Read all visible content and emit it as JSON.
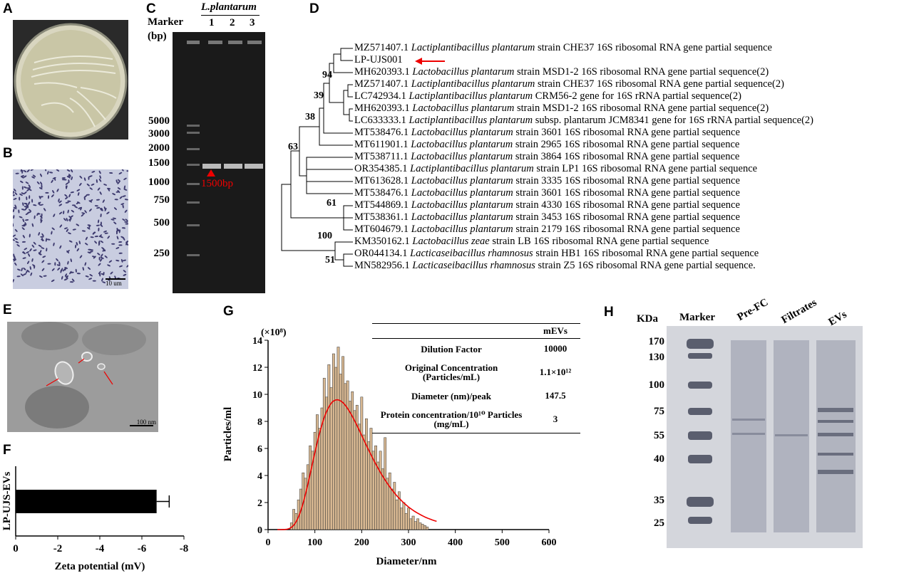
{
  "panels": {
    "a": {
      "label": "A"
    },
    "b": {
      "label": "B",
      "scale": "10 um"
    },
    "c": {
      "label": "C",
      "title": "L.plantarum",
      "marker": "Marker",
      "unit": "(bp)",
      "lanes": [
        "1",
        "2",
        "3"
      ],
      "ladder": [
        "5000",
        "3000",
        "2000",
        "1500",
        "1000",
        "750",
        "500",
        "250"
      ],
      "band_label": "1500bp"
    },
    "d": {
      "label": "D",
      "rows": [
        {
          "acc": "MZ571407.1",
          "sp": "Lactiplantibacillus plantarum",
          "rest": "strain CHE37 16S ribosomal RNA gene partial sequence"
        },
        {
          "acc": "LP-UJS001",
          "sp": "",
          "rest": ""
        },
        {
          "acc": "MH620393.1",
          "sp": "Lactobacillus plantarum",
          "rest": "strain MSD1-2 16S ribosomal RNA gene partial sequence(2)"
        },
        {
          "acc": "MZ571407.1",
          "sp": "Lactiplantibacillus plantarum",
          "rest": "strain CHE37 16S ribosomal RNA gene partial sequence(2)"
        },
        {
          "acc": "LC742934.1",
          "sp": "Lactiplantibacillus plantarum",
          "rest": "CRM56-2 gene for 16S rRNA partial sequence(2)"
        },
        {
          "acc": "MH620393.1",
          "sp": "Lactobacillus plantarum",
          "rest": "strain MSD1-2 16S ribosomal RNA gene partial sequence(2)"
        },
        {
          "acc": "LC633333.1",
          "sp": "Lactiplantibacillus plantarum",
          "rest": "subsp. plantarum JCM8341 gene for 16S rRNA partial sequence(2)"
        },
        {
          "acc": "MT538476.1",
          "sp": "Lactobacillus plantarum",
          "rest": "strain 3601 16S ribosomal RNA gene partial sequence"
        },
        {
          "acc": "MT611901.1",
          "sp": "Lactobacillus plantarum",
          "rest": "strain 2965 16S ribosomal RNA gene partial sequence"
        },
        {
          "acc": "MT538711.1",
          "sp": "Lactobacillus plantarum",
          "rest": "strain 3864 16S ribosomal RNA gene partial sequence"
        },
        {
          "acc": "OR354385.1",
          "sp": "Lactiplantibacillus plantarum",
          "rest": "strain LP1 16S ribosomal RNA gene partial sequence"
        },
        {
          "acc": "MT613628.1",
          "sp": "Lactobacillus plantarum",
          "rest": "strain 3335 16S ribosomal RNA gene partial sequence"
        },
        {
          "acc": "MT538476.1",
          "sp": "Lactobacillus plantarum",
          "rest": "strain 3601 16S ribosomal RNA gene partial sequence"
        },
        {
          "acc": "MT544869.1",
          "sp": "Lactobacillus plantarum",
          "rest": "strain 4330 16S ribosomal RNA gene partial sequence"
        },
        {
          "acc": "MT538361.1",
          "sp": "Lactobacillus plantarum",
          "rest": "strain 3453 16S ribosomal RNA gene partial sequence"
        },
        {
          "acc": "MT604679.1",
          "sp": "Lactobacillus plantarum",
          "rest": "strain 2179 16S ribosomal RNA gene partial sequence"
        },
        {
          "acc": "KM350162.1",
          "sp": "Lactobacillus zeae",
          "rest": "strain LB 16S ribosomal RNA gene partial sequence"
        },
        {
          "acc": "OR044134.1",
          "sp": "Lacticaseibacillus rhamnosus",
          "rest": "strain HB1 16S ribosomal RNA gene partial sequence"
        },
        {
          "acc": "MN582956.1",
          "sp": "Lacticaseibacillus rhamnosus",
          "rest": "strain Z5 16S ribosomal RNA gene partial sequence."
        }
      ],
      "nodes": [
        "94",
        "39",
        "38",
        "63",
        "61",
        "100",
        "51"
      ]
    },
    "e": {
      "label": "E",
      "scale": "100 nm"
    },
    "f": {
      "label": "F",
      "ylabel": "LP-UJS-EVs",
      "xlabel": "Zeta potential (mV)"
    },
    "g": {
      "label": "G",
      "multiplier": "(×10⁸)",
      "ylabel": "Particles/ml",
      "xlabel": "Diameter/nm",
      "table": {
        "col": "mEVs",
        "rows": [
          {
            "k": "Dilution Factor",
            "v": "10000"
          },
          {
            "k": "Original Concentration",
            "k2": "(Particles/mL)",
            "v": "1.1×10¹²"
          },
          {
            "k": "Diameter (nm)/peak",
            "v": "147.5"
          },
          {
            "k": "Protein concentration/10¹⁰ Particles",
            "k2": "(mg/mL)",
            "v": "3"
          }
        ]
      }
    },
    "h": {
      "label": "H",
      "unit": "KDa",
      "lanes": [
        "Marker",
        "Pre-FC",
        "Filtrates",
        "EVs"
      ],
      "ladder": [
        "170",
        "130",
        "100",
        "75",
        "55",
        "40",
        "35",
        "25"
      ]
    }
  },
  "chart_data": [
    {
      "type": "bar",
      "panel": "F",
      "categories": [
        "LP-UJS-EVs"
      ],
      "values": [
        -6.7
      ],
      "error": [
        0.6
      ],
      "xlim": [
        0,
        -8
      ],
      "xticks": [
        "0",
        "-2",
        "-4",
        "-6",
        "-8"
      ],
      "xlabel": "Zeta potential (mV)",
      "ylabel": "LP-UJS-EVs"
    },
    {
      "type": "bar",
      "panel": "G",
      "xlabel": "Diameter/nm",
      "ylabel": "Particles/ml",
      "xlim": [
        0,
        600
      ],
      "ylim": [
        0,
        14
      ],
      "xticks": [
        "0",
        "100",
        "200",
        "300",
        "400",
        "500",
        "600"
      ],
      "yticks": [
        "0",
        "2",
        "4",
        "6",
        "8",
        "10",
        "12",
        "14"
      ],
      "fit": {
        "type": "lognormal-like",
        "peak_x": 147.5,
        "peak_y": 9.6
      },
      "x": [
        50,
        55,
        60,
        65,
        70,
        75,
        80,
        85,
        90,
        95,
        100,
        105,
        110,
        115,
        120,
        125,
        130,
        135,
        140,
        145,
        150,
        155,
        160,
        165,
        170,
        175,
        180,
        185,
        190,
        195,
        200,
        205,
        210,
        215,
        220,
        225,
        230,
        235,
        240,
        245,
        250,
        255,
        260,
        265,
        270,
        275,
        280,
        285,
        290,
        295,
        300,
        305,
        310,
        315,
        320,
        325,
        330,
        335,
        340
      ],
      "values": [
        0.5,
        1.5,
        1.2,
        2.2,
        3.0,
        4.2,
        3.8,
        4.8,
        6.2,
        5.8,
        7.2,
        8.5,
        7.5,
        9.0,
        11.2,
        9.8,
        12.2,
        10.5,
        13.0,
        12.0,
        13.5,
        11.5,
        12.8,
        10.8,
        11.0,
        9.5,
        10.2,
        8.8,
        9.2,
        7.8,
        9.8,
        7.0,
        8.2,
        6.5,
        7.5,
        5.8,
        6.2,
        5.0,
        5.8,
        4.5,
        6.8,
        3.8,
        4.2,
        3.0,
        3.5,
        2.2,
        2.8,
        1.6,
        2.0,
        1.2,
        1.6,
        0.8,
        1.0,
        0.6,
        0.8,
        0.5,
        0.4,
        0.3,
        0.2
      ]
    }
  ]
}
